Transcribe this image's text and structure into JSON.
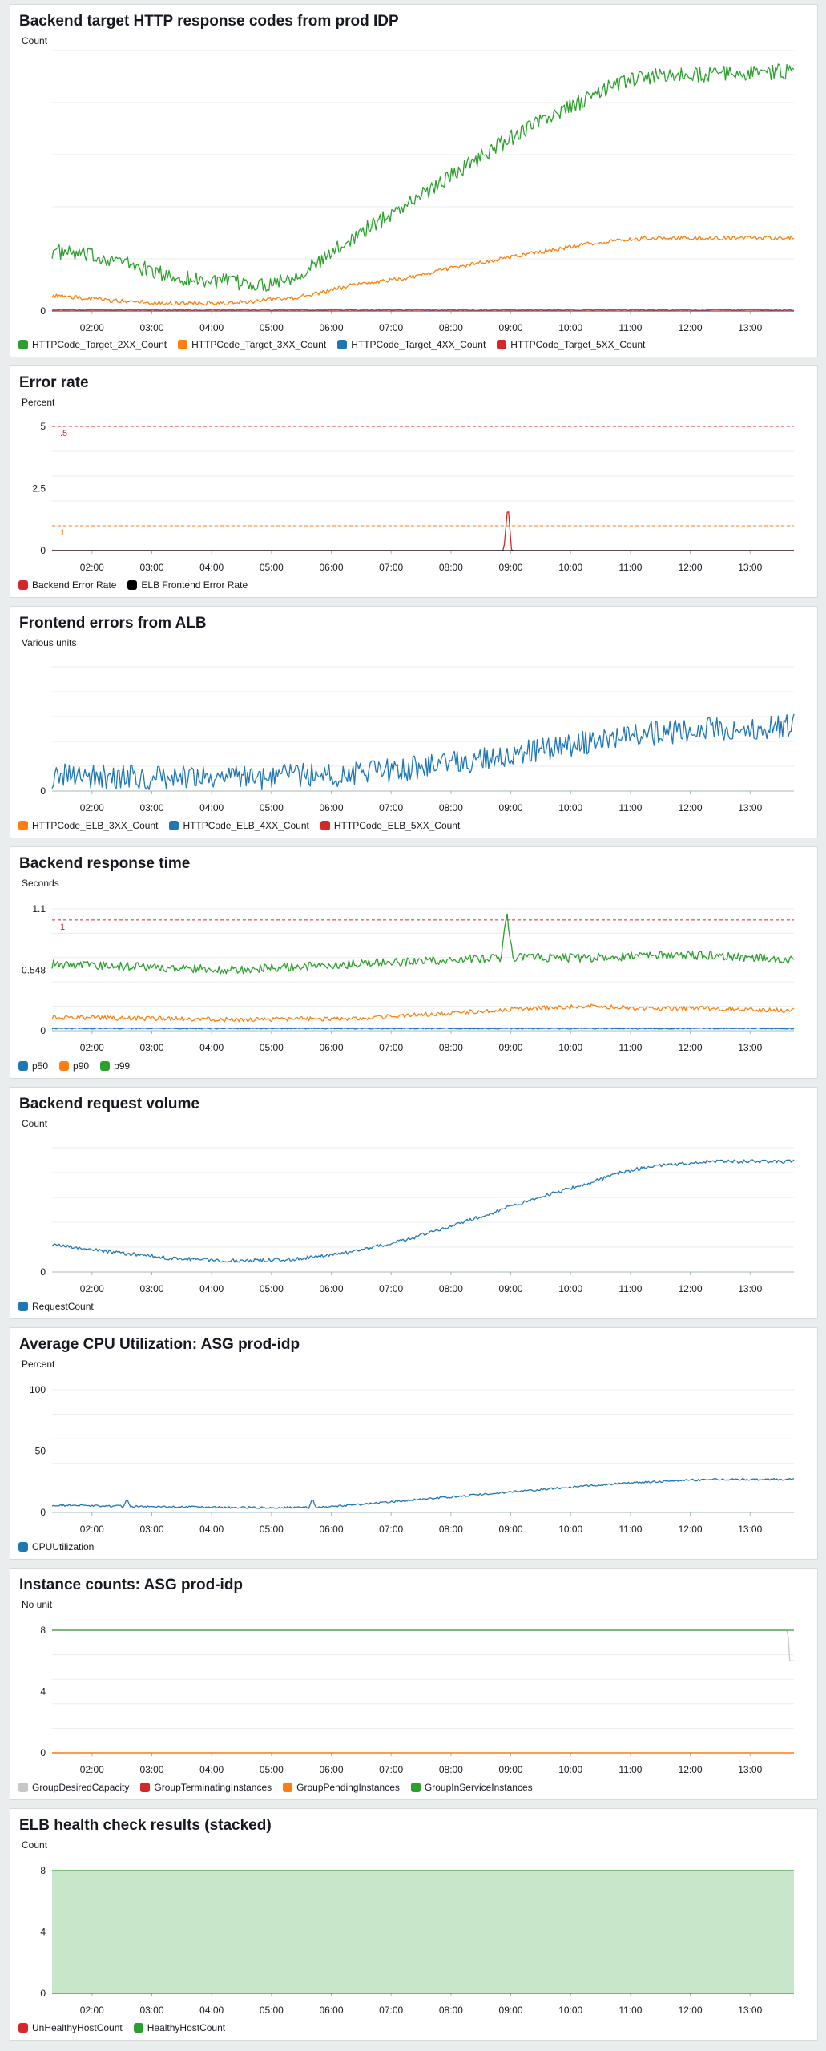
{
  "chart_data": [
    {
      "id": "c1",
      "type": "line",
      "title": "Backend target HTTP response codes from prod IDP",
      "ylabel": "Count",
      "x_ticks": [
        "02:00",
        "03:00",
        "04:00",
        "05:00",
        "06:00",
        "07:00",
        "08:00",
        "09:00",
        "10:00",
        "11:00",
        "12:00",
        "13:00"
      ],
      "y_ticks": [
        {
          "value": 0,
          "label": "0"
        }
      ],
      "ylim": [
        0,
        100
      ],
      "grid": true,
      "legend_position": "bottom",
      "series": [
        {
          "name": "HTTPCode_Target_2XX_Count",
          "color": "#2ca02c",
          "noise": 3,
          "points": [
            [
              0,
              23
            ],
            [
              1,
              20
            ],
            [
              2,
              13
            ],
            [
              3,
              11
            ],
            [
              3.5,
              10
            ],
            [
              4,
              13
            ],
            [
              4.5,
              19
            ],
            [
              5,
              28
            ],
            [
              6,
              42
            ],
            [
              7,
              57
            ],
            [
              8,
              71
            ],
            [
              9,
              82
            ],
            [
              9.5,
              88
            ],
            [
              10,
              90
            ],
            [
              11,
              91
            ],
            [
              12.4,
              92
            ]
          ]
        },
        {
          "name": "HTTPCode_Target_3XX_Count",
          "color": "#ff7f0e",
          "noise": 0.8,
          "points": [
            [
              0,
              6
            ],
            [
              1,
              4
            ],
            [
              2,
              3
            ],
            [
              3,
              3
            ],
            [
              4,
              5
            ],
            [
              4.5,
              7
            ],
            [
              5,
              10
            ],
            [
              6,
              13
            ],
            [
              7,
              18
            ],
            [
              8,
              22
            ],
            [
              9,
              26
            ],
            [
              10,
              28
            ],
            [
              12.4,
              28
            ]
          ]
        },
        {
          "name": "HTTPCode_Target_4XX_Count",
          "color": "#1f77b4",
          "noise": 0.2,
          "points": [
            [
              0,
              0.4
            ],
            [
              12.4,
              0.4
            ]
          ]
        },
        {
          "name": "HTTPCode_Target_5XX_Count",
          "color": "#d62728",
          "noise": 0,
          "points": [
            [
              0,
              0
            ],
            [
              12.4,
              0
            ]
          ]
        }
      ]
    },
    {
      "id": "c2",
      "type": "line",
      "title": "Error rate",
      "ylabel": "Percent",
      "x_ticks": [
        "02:00",
        "03:00",
        "04:00",
        "05:00",
        "06:00",
        "07:00",
        "08:00",
        "09:00",
        "10:00",
        "11:00",
        "12:00",
        "13:00"
      ],
      "y_ticks": [
        {
          "value": 0,
          "label": "0"
        },
        {
          "value": 2.5,
          "label": "2.5"
        },
        {
          "value": 5,
          "label": "5"
        }
      ],
      "ylim": [
        0,
        5
      ],
      "grid": true,
      "legend_position": "bottom",
      "thresholds": [
        {
          "value": 5,
          "label": ".5",
          "color": "#d62728"
        },
        {
          "value": 1,
          "label": "1",
          "color": "#ff7f0e"
        }
      ],
      "series": [
        {
          "name": "Backend Error Rate",
          "color": "#d62728",
          "noise": 0,
          "points": [
            [
              0,
              0
            ],
            [
              7.55,
              0
            ],
            [
              7.62,
              1.9
            ],
            [
              7.68,
              0
            ],
            [
              12.4,
              0
            ]
          ]
        },
        {
          "name": "ELB Frontend Error Rate",
          "color": "#000000",
          "noise": 0,
          "points": [
            [
              0,
              0
            ],
            [
              12.4,
              0
            ]
          ]
        }
      ]
    },
    {
      "id": "c3",
      "type": "line",
      "title": "Frontend errors from ALB",
      "ylabel": "Various units",
      "x_ticks": [
        "02:00",
        "03:00",
        "04:00",
        "05:00",
        "06:00",
        "07:00",
        "08:00",
        "09:00",
        "10:00",
        "11:00",
        "12:00",
        "13:00"
      ],
      "y_ticks": [
        {
          "value": 0,
          "label": "0"
        }
      ],
      "ylim": [
        0,
        100
      ],
      "grid": true,
      "legend_position": "bottom",
      "series": [
        {
          "name": "HTTPCode_ELB_3XX_Count",
          "color": "#ff7f0e",
          "noise": 0,
          "points": []
        },
        {
          "name": "HTTPCode_ELB_4XX_Count",
          "color": "#1f77b4",
          "noise": 10,
          "points": [
            [
              0,
              12
            ],
            [
              3,
              10
            ],
            [
              5,
              14
            ],
            [
              6,
              18
            ],
            [
              7,
              24
            ],
            [
              8,
              32
            ],
            [
              9,
              40
            ],
            [
              10,
              46
            ],
            [
              11,
              50
            ],
            [
              12.4,
              52
            ]
          ]
        },
        {
          "name": "HTTPCode_ELB_5XX_Count",
          "color": "#d62728",
          "noise": 0,
          "points": []
        }
      ]
    },
    {
      "id": "c4",
      "type": "line",
      "title": "Backend response time",
      "ylabel": "Seconds",
      "x_ticks": [
        "02:00",
        "03:00",
        "04:00",
        "05:00",
        "06:00",
        "07:00",
        "08:00",
        "09:00",
        "10:00",
        "11:00",
        "12:00",
        "13:00"
      ],
      "y_ticks": [
        {
          "value": 0,
          "label": "0"
        },
        {
          "value": 0.548,
          "label": "0.548"
        },
        {
          "value": 1.1,
          "label": "1.1"
        }
      ],
      "ylim": [
        0,
        1.1
      ],
      "grid": true,
      "legend_position": "bottom",
      "thresholds": [
        {
          "value": 1,
          "label": "1",
          "color": "#d62728"
        }
      ],
      "series": [
        {
          "name": "p50",
          "color": "#1f77b4",
          "noise": 0.005,
          "points": [
            [
              0,
              0.02
            ],
            [
              12.4,
              0.02
            ]
          ]
        },
        {
          "name": "p90",
          "color": "#ff7f0e",
          "noise": 0.02,
          "points": [
            [
              0,
              0.12
            ],
            [
              3,
              0.1
            ],
            [
              5,
              0.11
            ],
            [
              6,
              0.14
            ],
            [
              7,
              0.17
            ],
            [
              8,
              0.2
            ],
            [
              9,
              0.22
            ],
            [
              10,
              0.2
            ],
            [
              11,
              0.2
            ],
            [
              12.4,
              0.18
            ]
          ]
        },
        {
          "name": "p99",
          "color": "#2ca02c",
          "noise": 0.04,
          "points": [
            [
              0,
              0.6
            ],
            [
              3,
              0.55
            ],
            [
              5,
              0.6
            ],
            [
              7,
              0.65
            ],
            [
              7.5,
              0.66
            ],
            [
              7.6,
              1.05
            ],
            [
              7.7,
              0.66
            ],
            [
              9,
              0.66
            ],
            [
              10,
              0.68
            ],
            [
              11,
              0.68
            ],
            [
              12.4,
              0.64
            ]
          ]
        }
      ]
    },
    {
      "id": "c5",
      "type": "line",
      "title": "Backend request volume",
      "ylabel": "Count",
      "x_ticks": [
        "02:00",
        "03:00",
        "04:00",
        "05:00",
        "06:00",
        "07:00",
        "08:00",
        "09:00",
        "10:00",
        "11:00",
        "12:00",
        "13:00"
      ],
      "y_ticks": [
        {
          "value": 0,
          "label": "0"
        }
      ],
      "ylim": [
        0,
        100
      ],
      "grid": true,
      "legend_position": "bottom",
      "series": [
        {
          "name": "RequestCount",
          "color": "#1f77b4",
          "noise": 1.4,
          "points": [
            [
              0,
              22
            ],
            [
              1,
              16
            ],
            [
              2,
              11
            ],
            [
              3,
              9
            ],
            [
              4,
              10
            ],
            [
              5,
              16
            ],
            [
              6,
              27
            ],
            [
              7,
              42
            ],
            [
              8,
              58
            ],
            [
              9,
              72
            ],
            [
              9.5,
              80
            ],
            [
              10,
              85
            ],
            [
              11,
              89
            ],
            [
              12.4,
              89
            ]
          ]
        }
      ]
    },
    {
      "id": "c6",
      "type": "line",
      "title": "Average CPU Utilization: ASG prod-idp",
      "ylabel": "Percent",
      "x_ticks": [
        "02:00",
        "03:00",
        "04:00",
        "05:00",
        "06:00",
        "07:00",
        "08:00",
        "09:00",
        "10:00",
        "11:00",
        "12:00",
        "13:00"
      ],
      "y_ticks": [
        {
          "value": 0,
          "label": "0"
        },
        {
          "value": 50,
          "label": "50"
        },
        {
          "value": 100,
          "label": "100"
        }
      ],
      "ylim": [
        0,
        100
      ],
      "grid": true,
      "legend_position": "bottom",
      "series": [
        {
          "name": "CPUUtilization",
          "color": "#1f77b4",
          "noise": 0.8,
          "points": [
            [
              0,
              6
            ],
            [
              1.2,
              5
            ],
            [
              1.25,
              12
            ],
            [
              1.3,
              5
            ],
            [
              3,
              4
            ],
            [
              4.3,
              4
            ],
            [
              4.35,
              12
            ],
            [
              4.4,
              4
            ],
            [
              5,
              6
            ],
            [
              6,
              10
            ],
            [
              7,
              14
            ],
            [
              8,
              18
            ],
            [
              9,
              22
            ],
            [
              10,
              25
            ],
            [
              11,
              27
            ],
            [
              12.4,
              27
            ]
          ]
        }
      ]
    },
    {
      "id": "c7",
      "type": "line",
      "title": "Instance counts: ASG prod-idp",
      "ylabel": "No unit",
      "x_ticks": [
        "02:00",
        "03:00",
        "04:00",
        "05:00",
        "06:00",
        "07:00",
        "08:00",
        "09:00",
        "10:00",
        "11:00",
        "12:00",
        "13:00"
      ],
      "y_ticks": [
        {
          "value": 0,
          "label": "0"
        },
        {
          "value": 4,
          "label": "4"
        },
        {
          "value": 8,
          "label": "8"
        }
      ],
      "ylim": [
        0,
        8
      ],
      "grid": true,
      "legend_position": "bottom",
      "series": [
        {
          "name": "GroupDesiredCapacity",
          "color": "#c7c7c7",
          "noise": 0,
          "points": [
            [
              0,
              8
            ],
            [
              12.3,
              8
            ],
            [
              12.32,
              6
            ],
            [
              12.4,
              6
            ]
          ]
        },
        {
          "name": "GroupTerminatingInstances",
          "color": "#d62728",
          "noise": 0,
          "points": [
            [
              0,
              0
            ],
            [
              12.4,
              0
            ]
          ]
        },
        {
          "name": "GroupPendingInstances",
          "color": "#ff7f0e",
          "noise": 0,
          "points": [
            [
              0,
              0
            ],
            [
              12.4,
              0
            ]
          ]
        },
        {
          "name": "GroupInServiceInstances",
          "color": "#2ca02c",
          "noise": 0,
          "points": [
            [
              0,
              8
            ],
            [
              12.4,
              8
            ]
          ]
        }
      ]
    },
    {
      "id": "c8",
      "type": "area",
      "title": "ELB health check results (stacked)",
      "ylabel": "Count",
      "x_ticks": [
        "02:00",
        "03:00",
        "04:00",
        "05:00",
        "06:00",
        "07:00",
        "08:00",
        "09:00",
        "10:00",
        "11:00",
        "12:00",
        "13:00"
      ],
      "y_ticks": [
        {
          "value": 0,
          "label": "0"
        },
        {
          "value": 4,
          "label": "4"
        },
        {
          "value": 8,
          "label": "8"
        }
      ],
      "ylim": [
        0,
        8
      ],
      "grid": true,
      "stacked": true,
      "legend_position": "bottom",
      "series": [
        {
          "name": "UnHealthyHostCount",
          "color": "#d62728",
          "noise": 0,
          "points": [
            [
              0,
              0
            ],
            [
              12.4,
              0
            ]
          ]
        },
        {
          "name": "HealthyHostCount",
          "color": "#2ca02c",
          "fill": "#c8e6c9",
          "noise": 0,
          "points": [
            [
              0,
              8
            ],
            [
              12.4,
              8
            ]
          ]
        }
      ]
    }
  ]
}
